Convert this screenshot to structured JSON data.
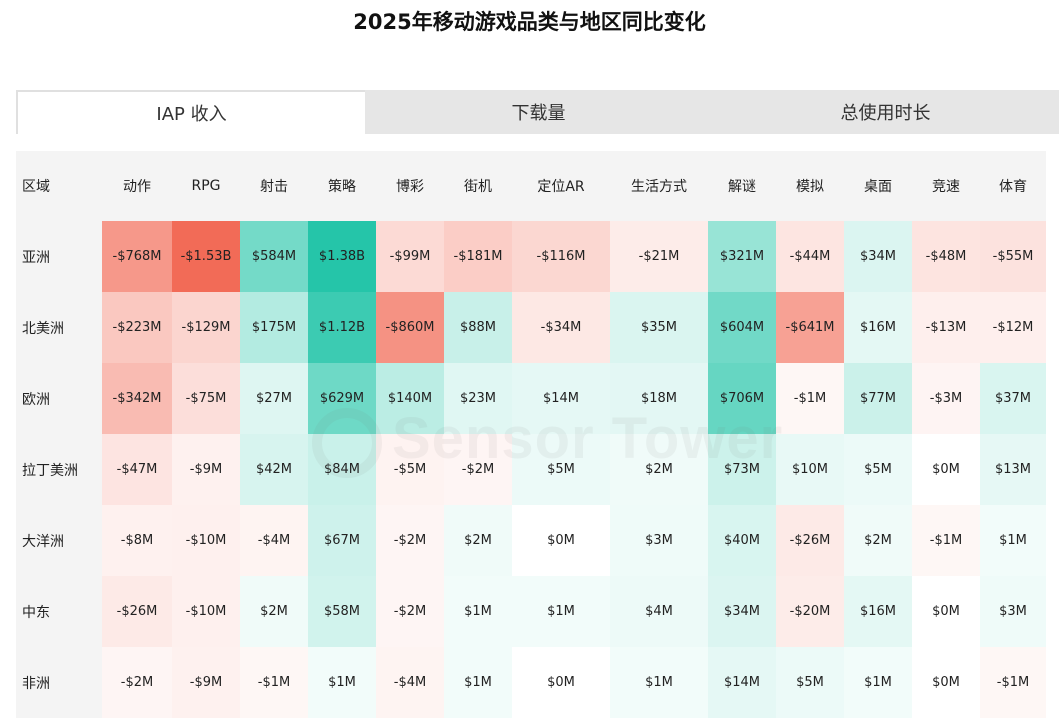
{
  "title": "2025年移动游戏品类与地区同比变化",
  "tabs": [
    {
      "label": "IAP 收入",
      "active": true
    },
    {
      "label": "下载量",
      "active": false
    },
    {
      "label": "总使用时长",
      "active": false
    }
  ],
  "watermark": "Sensor Tower",
  "colors": {
    "negative": "#f26b57",
    "positive": "#19c2a4",
    "header_bg": "#f4f4f4",
    "tab_bg": "#e6e6e6"
  },
  "chart_data": {
    "type": "heatmap",
    "title": "2025年移动游戏品类与地区同比变化",
    "unit": "USD (millions)",
    "row_header": "区域",
    "columns": [
      "动作",
      "RPG",
      "射击",
      "策略",
      "博彩",
      "街机",
      "定位AR",
      "生活方式",
      "解谜",
      "模拟",
      "桌面",
      "竞速",
      "体育"
    ],
    "rows": [
      "亚洲",
      "北美洲",
      "欧洲",
      "拉丁美洲",
      "大洋洲",
      "中东",
      "非洲"
    ],
    "values": [
      [
        -768,
        -1530,
        584,
        1380,
        -99,
        -181,
        -116,
        -21,
        321,
        -44,
        34,
        -48,
        -55
      ],
      [
        -223,
        -129,
        175,
        1120,
        -860,
        88,
        -34,
        35,
        604,
        -641,
        16,
        -13,
        -12
      ],
      [
        -342,
        -75,
        27,
        629,
        140,
        23,
        14,
        18,
        706,
        -1,
        77,
        -3,
        37
      ],
      [
        -47,
        -9,
        42,
        84,
        -5,
        -2,
        5,
        2,
        73,
        10,
        5,
        0,
        13
      ],
      [
        -8,
        -10,
        -4,
        67,
        -2,
        2,
        0,
        3,
        40,
        -26,
        2,
        -1,
        1
      ],
      [
        -26,
        -10,
        2,
        58,
        -2,
        1,
        1,
        4,
        34,
        -20,
        16,
        0,
        3
      ],
      [
        -2,
        -9,
        -1,
        1,
        -4,
        1,
        0,
        1,
        14,
        5,
        1,
        0,
        -1
      ]
    ],
    "labels": [
      [
        "-$768M",
        "-$1.53B",
        "$584M",
        "$1.38B",
        "-$99M",
        "-$181M",
        "-$116M",
        "-$21M",
        "$321M",
        "-$44M",
        "$34M",
        "-$48M",
        "-$55M"
      ],
      [
        "-$223M",
        "-$129M",
        "$175M",
        "$1.12B",
        "-$860M",
        "$88M",
        "-$34M",
        "$35M",
        "$604M",
        "-$641M",
        "$16M",
        "-$13M",
        "-$12M"
      ],
      [
        "-$342M",
        "-$75M",
        "$27M",
        "$629M",
        "$140M",
        "$23M",
        "$14M",
        "$18M",
        "$706M",
        "-$1M",
        "$77M",
        "-$3M",
        "$37M"
      ],
      [
        "-$47M",
        "-$9M",
        "$42M",
        "$84M",
        "-$5M",
        "-$2M",
        "$5M",
        "$2M",
        "$73M",
        "$10M",
        "$5M",
        "$0M",
        "$13M"
      ],
      [
        "-$8M",
        "-$10M",
        "-$4M",
        "$67M",
        "-$2M",
        "$2M",
        "$0M",
        "$3M",
        "$40M",
        "-$26M",
        "$2M",
        "-$1M",
        "$1M"
      ],
      [
        "-$26M",
        "-$10M",
        "$2M",
        "$58M",
        "-$2M",
        "$1M",
        "$1M",
        "$4M",
        "$34M",
        "-$20M",
        "$16M",
        "$0M",
        "$3M"
      ],
      [
        "-$2M",
        "-$9M",
        "-$1M",
        "$1M",
        "-$4M",
        "$1M",
        "$0M",
        "$1M",
        "$14M",
        "$5M",
        "$1M",
        "$0M",
        "-$1M"
      ]
    ]
  }
}
